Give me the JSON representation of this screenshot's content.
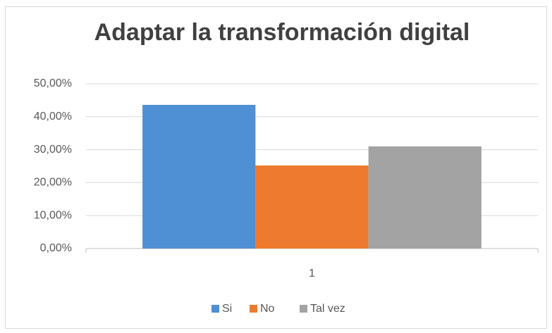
{
  "chart_data": {
    "type": "bar",
    "title": "Adaptar la transformación digital",
    "categories": [
      "1"
    ],
    "series": [
      {
        "name": "Si",
        "color": "#4f8fd3",
        "values": [
          43.6
        ]
      },
      {
        "name": "No",
        "color": "#ed7a2e",
        "values": [
          25.2
        ]
      },
      {
        "name": "Tal vez",
        "color": "#a3a3a3",
        "values": [
          31.0
        ]
      }
    ],
    "ylim": [
      0,
      50
    ],
    "yticks": [
      {
        "value": 0,
        "label": "0,00%"
      },
      {
        "value": 10,
        "label": "10,00%"
      },
      {
        "value": 20,
        "label": "20,00%"
      },
      {
        "value": 30,
        "label": "30,00%"
      },
      {
        "value": 40,
        "label": "40,00%"
      },
      {
        "value": 50,
        "label": "50,00%"
      }
    ],
    "grid": true,
    "legend": "bottom"
  }
}
